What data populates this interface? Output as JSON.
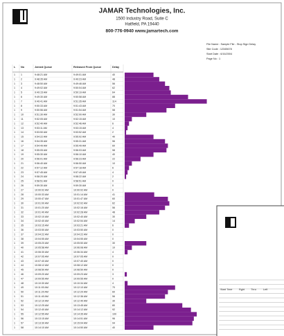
{
  "header": {
    "company": "JAMAR Technologies, Inc.",
    "address1": "1500 Industry Road, Suite C",
    "address2": "Hatfield, PA 19440",
    "contact": "800-776-0940   www.jamartech.com"
  },
  "info": [
    "File Name : Sample File - Stop Sign Delay",
    "Site Code : 12345678",
    "Start Date : 6/16/2004",
    "Page No : 1"
  ],
  "table": {
    "columns": [
      "L",
      "No",
      "Joined Queue",
      "Released From Queue",
      "Delay"
    ],
    "rows": [
      [
        "1",
        "1",
        "9:48:21 AM",
        "9:49:01 AM",
        40
      ],
      [
        "1",
        "2",
        "9:48:35 AM",
        "9:49:23 AM",
        48
      ],
      [
        "1",
        "3",
        "9:48:50 AM",
        "9:49:46 AM",
        56
      ],
      [
        "1",
        "4",
        "9:49:02 AM",
        "9:50:04 AM",
        62
      ],
      [
        "1",
        "5",
        "9:49:15 AM",
        "9:50:19 AM",
        64
      ],
      [
        "1",
        "6",
        "9:49:30 AM",
        "9:50:58 AM",
        88
      ],
      [
        "1",
        "7",
        "9:49:41 AM",
        "9:51:35 AM",
        114
      ],
      [
        "1",
        "8",
        "9:50:33 AM",
        "9:51:43 AM",
        70
      ],
      [
        "1",
        "9",
        "9:50:56 AM",
        "9:51:54 AM",
        58
      ],
      [
        "1",
        "10",
        "9:51:30 AM",
        "9:52:00 AM",
        30
      ],
      [
        "1",
        "11",
        "9:52:05 AM",
        "9:52:15 AM",
        10
      ],
      [
        "1",
        "12",
        "9:52:40 AM",
        "9:52:46 AM",
        6
      ],
      [
        "1",
        "13",
        "9:53:11 AM",
        "9:53:15 AM",
        4
      ],
      [
        "1",
        "14",
        "9:53:50 AM",
        "9:53:52 AM",
        2
      ],
      [
        "1",
        "15",
        "9:54:22 AM",
        "9:55:02 AM",
        40
      ],
      [
        "1",
        "16",
        "9:54:35 AM",
        "9:55:31 AM",
        56
      ],
      [
        "1",
        "17",
        "9:54:49 AM",
        "9:55:49 AM",
        60
      ],
      [
        "1",
        "18",
        "9:55:05 AM",
        "9:56:03 AM",
        58
      ],
      [
        "1",
        "19",
        "9:55:30 AM",
        "9:56:10 AM",
        40
      ],
      [
        "1",
        "20",
        "9:56:01 AM",
        "9:56:23 AM",
        22
      ],
      [
        "1",
        "21",
        "9:56:40 AM",
        "9:56:50 AM",
        10
      ],
      [
        "1",
        "22",
        "9:57:12 AM",
        "9:57:18 AM",
        6
      ],
      [
        "1",
        "23",
        "9:57:45 AM",
        "9:57:49 AM",
        4
      ],
      [
        "1",
        "24",
        "9:58:20 AM",
        "9:58:22 AM",
        2
      ],
      [
        "1",
        "25",
        "9:58:51 AM",
        "9:58:51 AM",
        0
      ],
      [
        "1",
        "26",
        "9:59:30 AM",
        "9:59:30 AM",
        0
      ],
      [
        "1",
        "27",
        "10:00:02 AM",
        "10:00:02 AM",
        0
      ],
      [
        "1",
        "28",
        "10:00:33 AM",
        "10:01:14 AM",
        41
      ],
      [
        "1",
        "29",
        "10:00:47 AM",
        "10:01:47 AM",
        60
      ],
      [
        "1",
        "30",
        "10:01:00 AM",
        "10:02:02 AM",
        62
      ],
      [
        "1",
        "31",
        "10:01:20 AM",
        "10:02:16 AM",
        56
      ],
      [
        "1",
        "32",
        "10:01:40 AM",
        "10:02:28 AM",
        48
      ],
      [
        "1",
        "33",
        "10:02:10 AM",
        "10:02:40 AM",
        30
      ],
      [
        "1",
        "34",
        "10:02:40 AM",
        "10:02:54 AM",
        14
      ],
      [
        "1",
        "35",
        "10:03:15 AM",
        "10:03:21 AM",
        6
      ],
      [
        "1",
        "36",
        "10:03:50 AM",
        "10:03:50 AM",
        0
      ],
      [
        "1",
        "37",
        "10:04:22 AM",
        "10:04:22 AM",
        0
      ],
      [
        "1",
        "38",
        "10:04:55 AM",
        "10:04:55 AM",
        0
      ],
      [
        "1",
        "39",
        "10:05:20 AM",
        "10:05:50 AM",
        30
      ],
      [
        "1",
        "40",
        "10:05:58 AM",
        "10:06:08 AM",
        10
      ],
      [
        "1",
        "41",
        "10:06:30 AM",
        "10:06:34 AM",
        4
      ],
      [
        "1",
        "42",
        "10:07:05 AM",
        "10:07:05 AM",
        0
      ],
      [
        "1",
        "43",
        "10:07:40 AM",
        "10:07:40 AM",
        0
      ],
      [
        "1",
        "44",
        "10:08:12 AM",
        "10:08:12 AM",
        0
      ],
      [
        "1",
        "45",
        "10:08:50 AM",
        "10:08:50 AM",
        0
      ],
      [
        "1",
        "46",
        "10:09:20 AM",
        "10:09:23 AM",
        3
      ],
      [
        "1",
        "47",
        "10:09:55 AM",
        "10:09:55 AM",
        0
      ],
      [
        "1",
        "48",
        "10:10:30 AM",
        "10:10:34 AM",
        4
      ],
      [
        "1",
        "49",
        "10:11:00 AM",
        "10:12:10 AM",
        70
      ],
      [
        "1",
        "50",
        "10:11:20 AM",
        "10:12:20 AM",
        60
      ],
      [
        "1",
        "51",
        "10:11:40 AM",
        "10:12:36 AM",
        56
      ],
      [
        "1",
        "52",
        "10:12:10 AM",
        "10:12:40 AM",
        30
      ],
      [
        "1",
        "53",
        "10:12:25 AM",
        "10:13:45 AM",
        80
      ],
      [
        "1",
        "54",
        "10:12:40 AM",
        "10:14:12 AM",
        92
      ],
      [
        "1",
        "55",
        "10:12:55 AM",
        "10:14:35 AM",
        100
      ],
      [
        "1",
        "56",
        "10:13:15 AM",
        "10:14:51 AM",
        96
      ],
      [
        "1",
        "57",
        "10:13:30 AM",
        "10:15:04 AM",
        94
      ],
      [
        "1",
        "58",
        "10:14:10 AM",
        "10:14:50 AM",
        40
      ]
    ]
  },
  "second_page": {
    "columns": [
      "Start Time",
      "Rght",
      "Thru",
      "Left"
    ]
  }
}
